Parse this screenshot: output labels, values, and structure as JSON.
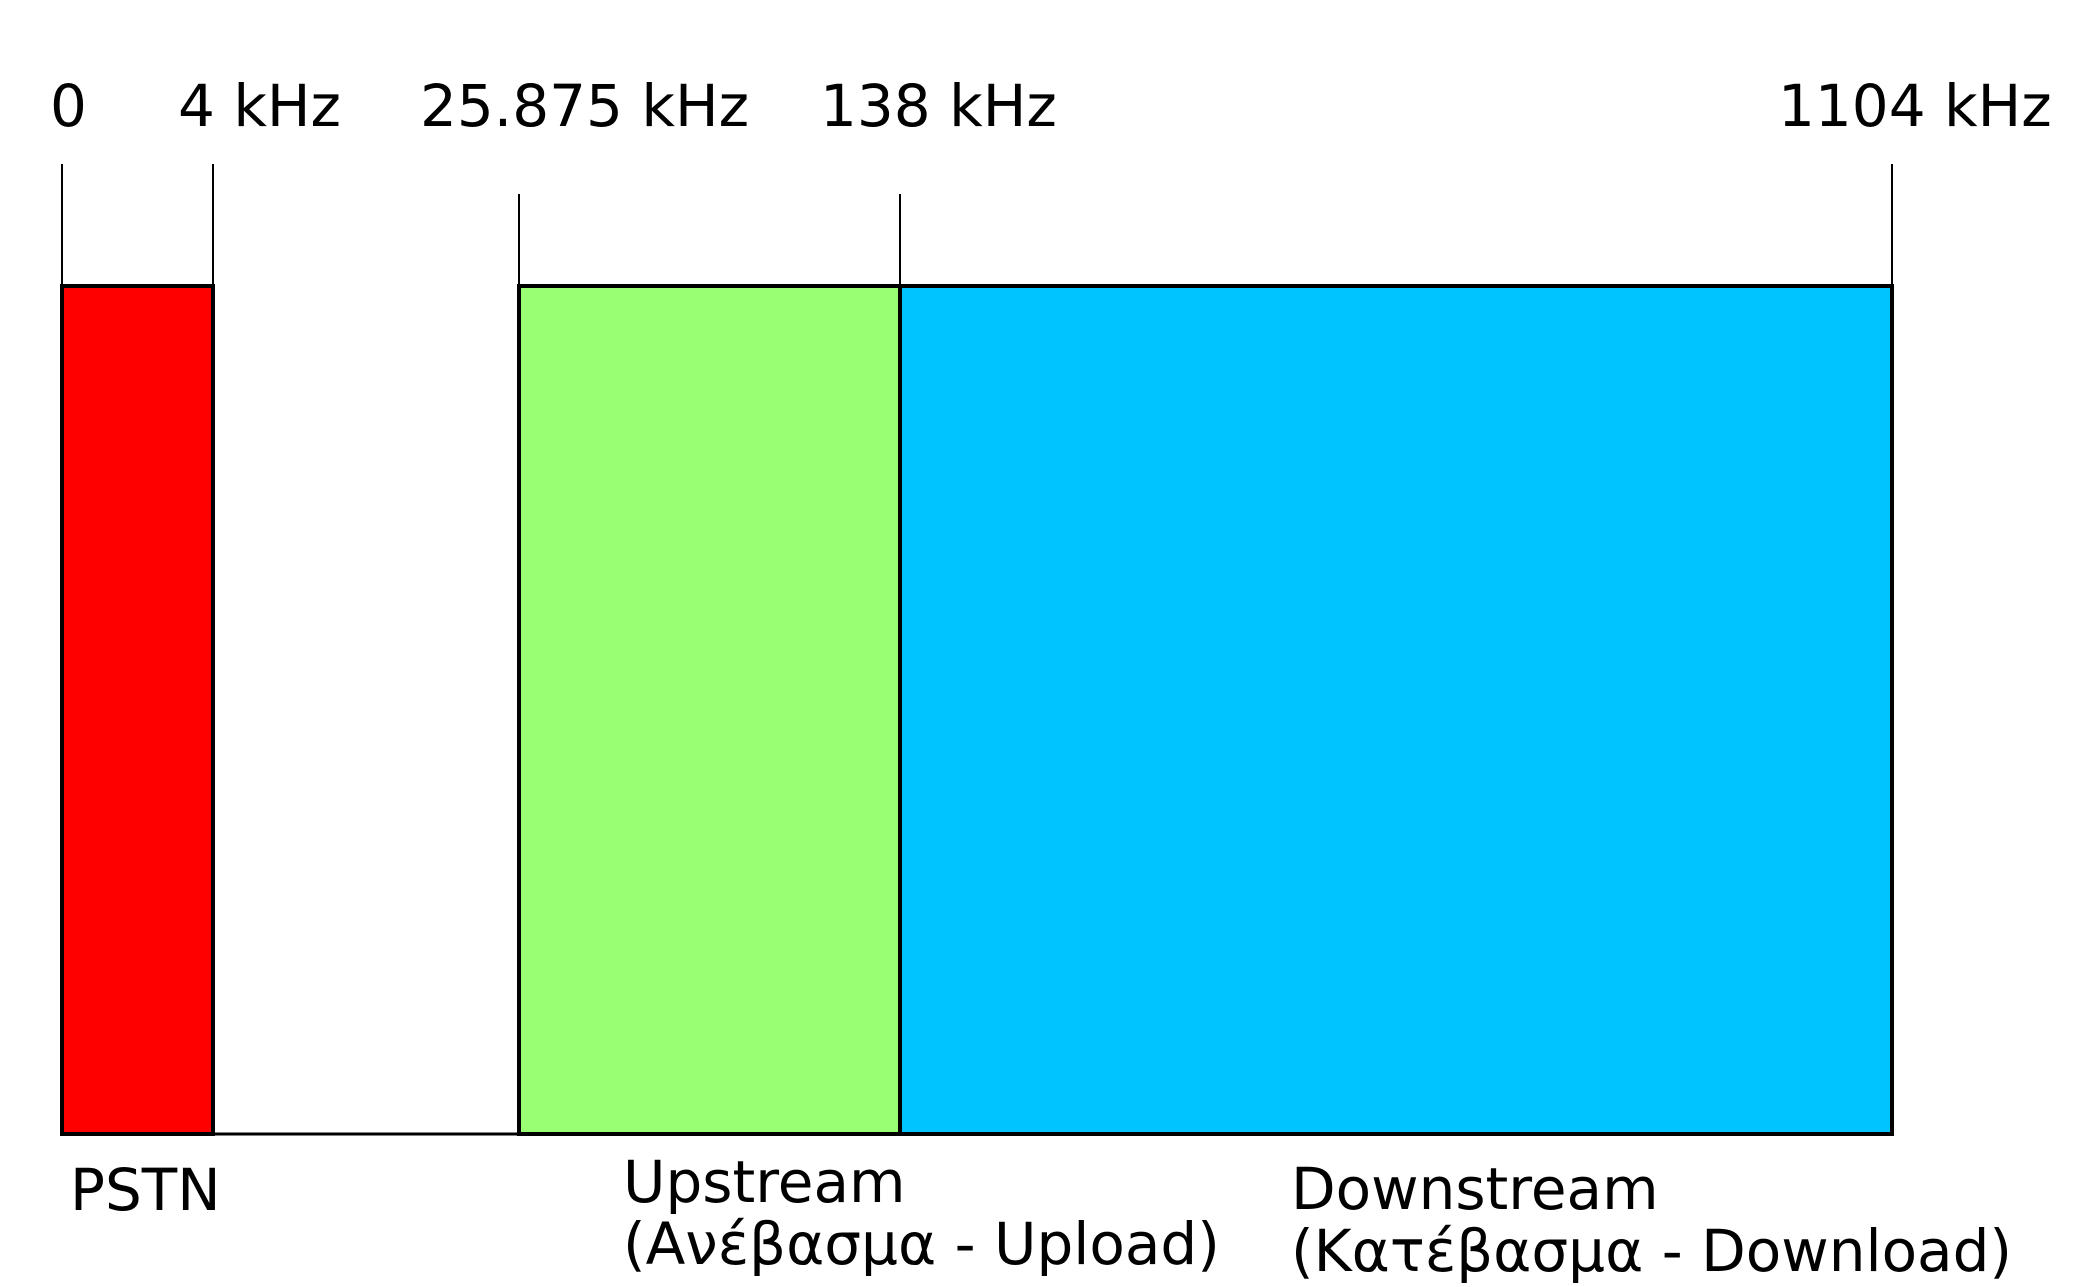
{
  "frequency_ticks": [
    {
      "label": "0",
      "khz": 0
    },
    {
      "label": "4 kHz",
      "khz": 4
    },
    {
      "label": "25.875 kHz",
      "khz": 25.875
    },
    {
      "label": "138 kHz",
      "khz": 138
    },
    {
      "label": "1104 kHz",
      "khz": 1104
    }
  ],
  "bands": [
    {
      "id": "pstn",
      "label": "PSTN",
      "sublabel": "",
      "from_khz": 0,
      "to_khz": 4,
      "color": "#ff0000"
    },
    {
      "id": "upstream",
      "label": "Upstream",
      "sublabel": "(Ανέβασμα - Upload)",
      "from_khz": 25.875,
      "to_khz": 138,
      "color": "#99ff73"
    },
    {
      "id": "downstream",
      "label": "Downstream",
      "sublabel": "(Κατέβασμα - Download)",
      "from_khz": 138,
      "to_khz": 1104,
      "color": "#00c4ff"
    }
  ]
}
